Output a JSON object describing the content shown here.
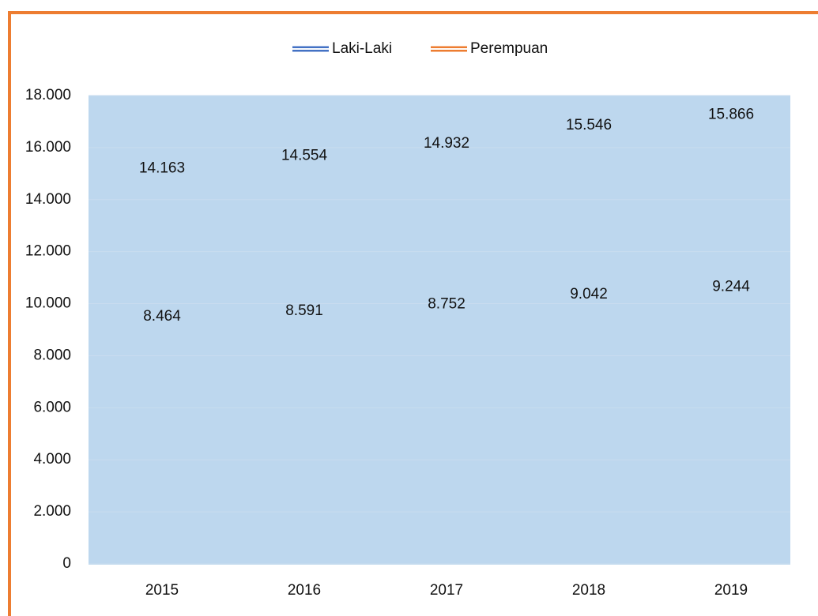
{
  "chart_data": {
    "type": "line",
    "categories": [
      "2015",
      "2016",
      "2017",
      "2018",
      "2019"
    ],
    "series": [
      {
        "name": "Laki-Laki",
        "color": "#4472c4",
        "values": [
          14163,
          14554,
          14932,
          15546,
          15866
        ],
        "value_labels": [
          "14.163",
          "14.554",
          "14.932",
          "15.546",
          "15.866"
        ]
      },
      {
        "name": "Perempuan",
        "color": "#ed7d31",
        "values": [
          8464,
          8591,
          8752,
          9042,
          9244
        ],
        "value_labels": [
          "8.464",
          "8.591",
          "8.752",
          "9.042",
          "9.244"
        ]
      }
    ],
    "ylim": [
      0,
      18000
    ],
    "yticks": [
      0,
      {
        "value": 2000,
        "label": "2.000"
      },
      {
        "value": 4000,
        "label": "4.000"
      },
      {
        "value": 6000,
        "label": "6.000"
      },
      {
        "value": 8000,
        "label": "8.000"
      },
      {
        "value": 10000,
        "label": "10.000"
      },
      {
        "value": 12000,
        "label": "12.000"
      },
      {
        "value": 14000,
        "label": "14.000"
      },
      {
        "value": 16000,
        "label": "16.000"
      },
      {
        "value": 18000,
        "label": "18.000"
      }
    ],
    "grid": true,
    "legend": "top"
  }
}
